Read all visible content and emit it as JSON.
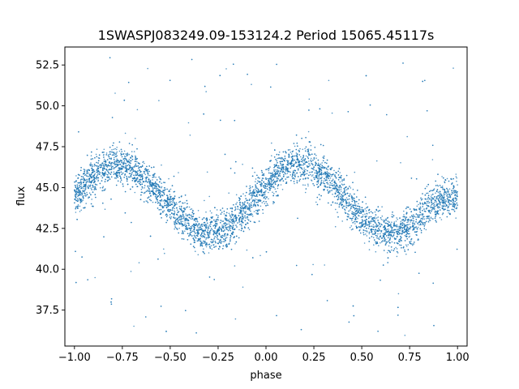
{
  "chart_data": {
    "type": "scatter",
    "title": "1SWASPJ083249.09-153124.2 Period 15065.45117s",
    "xlabel": "phase",
    "ylabel": "flux",
    "xlim": [
      -1.05,
      1.05
    ],
    "ylim": [
      35.3,
      53.6
    ],
    "xticks": [
      -1.0,
      -0.75,
      -0.5,
      -0.25,
      0.0,
      0.25,
      0.5,
      0.75,
      1.0
    ],
    "xtick_labels": [
      "−1.00",
      "−0.75",
      "−0.50",
      "−0.25",
      "0.00",
      "0.25",
      "0.50",
      "0.75",
      "1.00"
    ],
    "yticks": [
      37.5,
      40.0,
      42.5,
      45.0,
      47.5,
      50.0,
      52.5
    ],
    "ytick_labels": [
      "37.5",
      "40.0",
      "42.5",
      "45.0",
      "47.5",
      "50.0",
      "52.5"
    ],
    "grid": false,
    "point_color": "#1f77b4",
    "series": [
      {
        "x": [
          -1.0,
          -0.95,
          -0.9,
          -0.85,
          -0.8,
          -0.75,
          -0.7,
          -0.65,
          -0.6,
          -0.55,
          -0.5,
          -0.45,
          -0.4,
          -0.35,
          -0.3,
          -0.25,
          -0.2,
          -0.15,
          -0.1,
          -0.05,
          0.0,
          0.05,
          0.1,
          0.15,
          0.2,
          0.25,
          0.3,
          0.35,
          0.4,
          0.45,
          0.5,
          0.55,
          0.6,
          0.65,
          0.7,
          0.75,
          0.8,
          0.85,
          0.9,
          0.95,
          1.0
        ],
        "y": [
          44.4,
          45.1,
          45.7,
          46.1,
          46.4,
          46.4,
          46.2,
          45.8,
          45.2,
          44.5,
          43.8,
          43.2,
          42.7,
          42.3,
          42.2,
          42.3,
          42.6,
          43.1,
          43.7,
          44.4,
          45.1,
          45.7,
          46.1,
          46.4,
          46.4,
          46.2,
          45.8,
          45.2,
          44.5,
          43.8,
          43.2,
          42.7,
          42.3,
          42.2,
          42.3,
          42.6,
          43.1,
          43.7,
          44.2,
          44.3,
          44.4
        ],
        "scatter_spread": 0.6
      }
    ]
  }
}
